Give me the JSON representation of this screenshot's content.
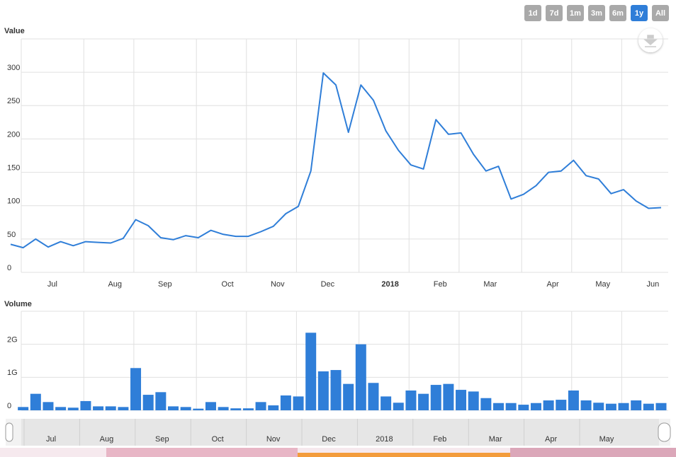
{
  "range_buttons": [
    "1d",
    "7d",
    "1m",
    "3m",
    "6m",
    "1y",
    "All"
  ],
  "selected_range": "1y",
  "chart_data": [
    {
      "type": "line",
      "title": "Value",
      "categories": [
        null,
        null,
        null,
        "Jul",
        null,
        null,
        null,
        null,
        "Aug",
        null,
        null,
        null,
        "Sep",
        null,
        null,
        null,
        null,
        "Oct",
        null,
        null,
        null,
        "Nov",
        null,
        null,
        null,
        "Dec",
        null,
        null,
        null,
        null,
        "2018",
        null,
        null,
        null,
        "Feb",
        null,
        null,
        null,
        "Mar",
        null,
        null,
        null,
        null,
        "Apr",
        null,
        null,
        null,
        "May",
        null,
        null,
        null,
        "Jun",
        null
      ],
      "series": [
        {
          "name": "Value",
          "color": "#2f7ed8",
          "values": [
            42,
            37,
            50,
            38,
            46,
            40,
            46,
            45,
            44,
            51,
            79,
            70,
            52,
            49,
            55,
            52,
            63,
            57,
            54,
            54,
            61,
            69,
            88,
            99,
            152,
            299,
            281,
            210,
            281,
            258,
            212,
            183,
            161,
            155,
            229,
            207,
            209,
            177,
            152,
            159,
            110,
            117,
            130,
            150,
            152,
            168,
            145,
            140,
            118,
            124,
            107,
            96,
            97
          ]
        }
      ],
      "ylim": [
        0,
        350
      ],
      "yticks": [
        0,
        50,
        100,
        150,
        200,
        250,
        300
      ],
      "grid": true
    },
    {
      "type": "bar",
      "title": "Volume",
      "series": [
        {
          "name": "Volume",
          "color": "#2f7ed8",
          "values": [
            null,
            0.1,
            0.5,
            0.25,
            0.1,
            0.08,
            0.28,
            0.12,
            0.12,
            0.1,
            1.28,
            0.47,
            0.55,
            0.12,
            0.1,
            0.05,
            0.25,
            0.1,
            0.06,
            0.06,
            0.25,
            0.15,
            0.45,
            0.42,
            2.35,
            1.18,
            1.22,
            0.8,
            2.0,
            0.83,
            0.42,
            0.23,
            0.6,
            0.5,
            0.77,
            0.8,
            0.62,
            0.57,
            0.37,
            0.22,
            0.22,
            0.17,
            0.22,
            0.3,
            0.32,
            0.6,
            0.3,
            0.23,
            0.2,
            0.22,
            0.3,
            0.2,
            0.22
          ]
        }
      ],
      "ylim": [
        0,
        3
      ],
      "yticks": [
        0,
        {
          "value": 1,
          "label": "1G"
        },
        {
          "value": 2,
          "label": "2G"
        }
      ],
      "grid": true
    }
  ],
  "navigator": {
    "labels": [
      "Jul",
      "Aug",
      "Sep",
      "Oct",
      "Nov",
      "Dec",
      "2018",
      "Feb",
      "Mar",
      "Apr",
      "May"
    ]
  }
}
